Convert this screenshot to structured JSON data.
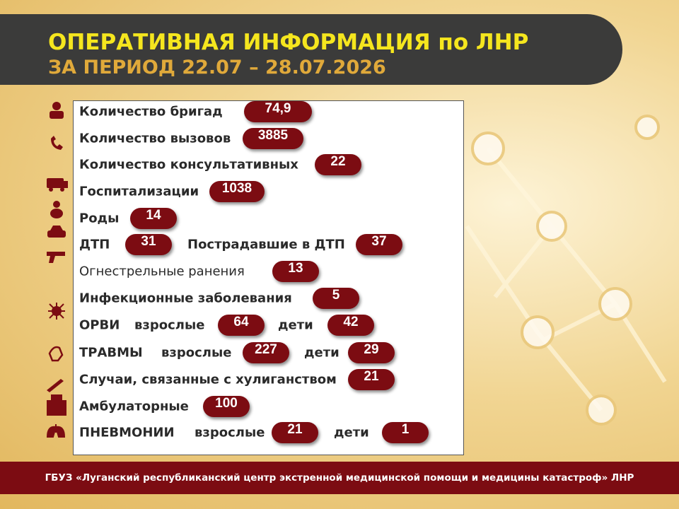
{
  "header": {
    "title": "ОПЕРАТИВНАЯ ИНФОРМАЦИЯ по ЛНР",
    "subtitle": "ЗА ПЕРИОД 22.07 – 28.07.2026"
  },
  "rows": [
    {
      "items": [
        {
          "text": "Количество бригад"
        },
        {
          "value": "74,9"
        }
      ]
    },
    {
      "items": [
        {
          "text": "Количество вызовов"
        },
        {
          "value": 3885
        }
      ]
    },
    {
      "items": [
        {
          "text": "Количество консультативных"
        },
        {
          "value": 22
        }
      ]
    },
    {
      "items": [
        {
          "text": "Госпитализации"
        },
        {
          "value": 1038
        }
      ]
    },
    {
      "items": [
        {
          "text": "Роды"
        },
        {
          "value": 14
        }
      ]
    },
    {
      "items": [
        {
          "text": "ДТП"
        },
        {
          "value": 31
        },
        {
          "text": "Пострадавшие в ДТП"
        },
        {
          "value": 37
        }
      ]
    },
    {
      "items": [
        {
          "text": "Огнестрельные ранения"
        },
        {
          "value": 13
        }
      ]
    },
    {
      "items": [
        {
          "text": "Инфекционные заболевания"
        },
        {
          "value": 5
        }
      ]
    },
    {
      "items": [
        {
          "text": "ОРВИ"
        },
        {
          "text": "взрослые"
        },
        {
          "value": 64
        },
        {
          "text": "дети"
        },
        {
          "value": 42
        }
      ]
    },
    {
      "items": [
        {
          "text": "ТРАВМЫ"
        },
        {
          "text": "взрослые"
        },
        {
          "value": 227
        },
        {
          "text": "дети"
        },
        {
          "value": 29
        }
      ]
    },
    {
      "items": [
        {
          "text": "Случаи, связанные с хулиганством"
        },
        {
          "value": 21
        }
      ]
    },
    {
      "items": [
        {
          "text": "Амбулаторные"
        },
        {
          "value": 100
        }
      ]
    },
    {
      "items": [
        {
          "text": "ПНЕВМОНИИ"
        },
        {
          "text": "взрослые"
        },
        {
          "value": 21
        },
        {
          "text": "дети"
        },
        {
          "value": 1
        }
      ]
    }
  ],
  "footer": "ГБУЗ «Луганский республиканский центр экстренной медицинской помощи и медицины катастроф» ЛНР"
}
